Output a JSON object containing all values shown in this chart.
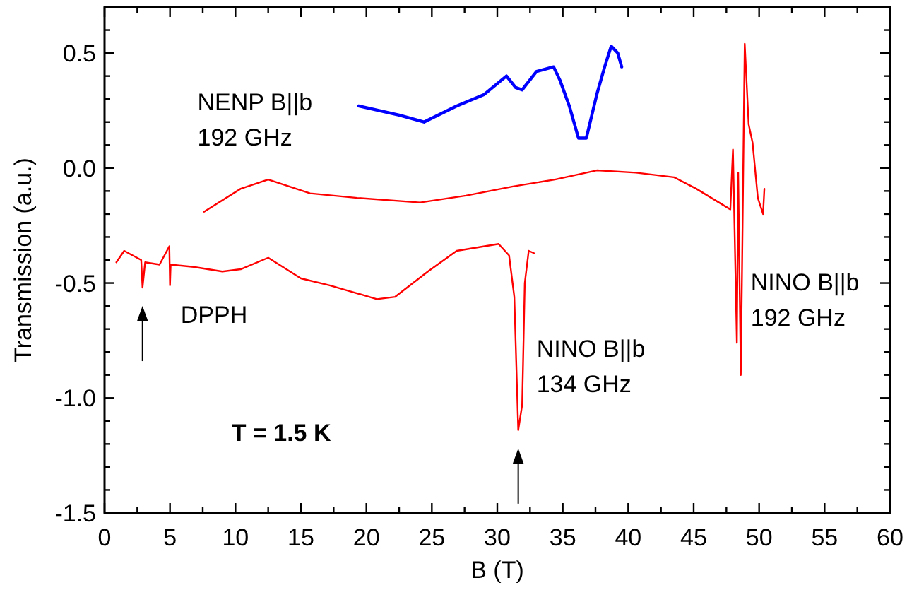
{
  "chart_data": {
    "type": "line",
    "xlabel": "B (T)",
    "ylabel": "Transmission (a.u.)",
    "xlim": [
      0,
      60
    ],
    "ylim": [
      -1.5,
      0.7
    ],
    "xticks": [
      0,
      {
        "value": 2.5,
        "label": null
      },
      5,
      {
        "value": 7.5,
        "label": null
      },
      10,
      {
        "value": 12.5,
        "label": null
      },
      15,
      {
        "value": 17.5,
        "label": null
      },
      20,
      {
        "value": 22.5,
        "label": null
      },
      25,
      {
        "value": 27.5,
        "label": null
      },
      30,
      {
        "value": 32.5,
        "label": null
      },
      35,
      {
        "value": 37.5,
        "label": null
      },
      40,
      {
        "value": 42.5,
        "label": null
      },
      45,
      {
        "value": 47.5,
        "label": null
      },
      50,
      {
        "value": 52.5,
        "label": null
      },
      55,
      {
        "value": 57.5,
        "label": null
      },
      60
    ],
    "yticks": [
      -1.5,
      {
        "value": -1.4,
        "label": null
      },
      {
        "value": -1.3,
        "label": null
      },
      {
        "value": -1.2,
        "label": null
      },
      {
        "value": -1.1,
        "label": null
      },
      {
        "value": -1.0,
        "label": "-1.0"
      },
      {
        "value": -0.9,
        "label": null
      },
      {
        "value": -0.8,
        "label": null
      },
      {
        "value": -0.7,
        "label": null
      },
      {
        "value": -0.6,
        "label": null
      },
      -0.5,
      {
        "value": -0.4,
        "label": null
      },
      {
        "value": -0.3,
        "label": null
      },
      {
        "value": -0.2,
        "label": null
      },
      {
        "value": -0.1,
        "label": null
      },
      {
        "value": 0,
        "label": "0.0"
      },
      {
        "value": 0.1,
        "label": null
      },
      {
        "value": 0.2,
        "label": null
      },
      {
        "value": 0.3,
        "label": null
      },
      {
        "value": 0.4,
        "label": null
      },
      0.5,
      {
        "value": 0.6,
        "label": null
      }
    ],
    "grid": false,
    "marker": "none",
    "line_style": "solid",
    "series": [
      {
        "color": "#0000ff",
        "x": [
          19.4,
          22.5,
          24.4,
          26.9,
          29.0,
          30.7,
          31.4,
          31.9,
          33.0,
          34.3,
          34.8,
          35.5,
          36.2,
          36.8,
          37.6,
          38.2,
          38.7,
          39.2,
          39.5
        ],
        "values": [
          0.27,
          0.23,
          0.2,
          0.27,
          0.32,
          0.4,
          0.35,
          0.34,
          0.42,
          0.44,
          0.38,
          0.27,
          0.13,
          0.13,
          0.32,
          0.44,
          0.53,
          0.5,
          0.44
        ]
      },
      {
        "color": "#ff0000",
        "x": [
          7.6,
          10.4,
          12.5,
          15.7,
          19.3,
          24.1,
          27.6,
          31.2,
          34.4,
          37.6,
          40.6,
          43.5,
          45.2,
          47.8,
          48.0,
          48.3,
          48.4,
          48.6,
          48.9,
          49.2,
          49.5,
          49.9,
          50.3,
          50.4
        ],
        "values": [
          -0.19,
          -0.09,
          -0.05,
          -0.11,
          -0.13,
          -0.15,
          -0.12,
          -0.08,
          -0.05,
          -0.01,
          -0.02,
          -0.04,
          -0.09,
          -0.18,
          0.08,
          -0.76,
          -0.02,
          -0.9,
          0.54,
          0.19,
          0.11,
          -0.13,
          -0.2,
          -0.09
        ]
      },
      {
        "color": "#ff0000",
        "x": [
          0.9,
          1.5,
          2.8,
          2.9,
          3.1,
          4.2,
          4.95,
          5.0,
          5.05,
          6.8,
          9.0,
          10.4,
          12.5,
          15.0,
          17.2,
          20.8,
          22.2,
          24.7,
          26.9,
          30.1,
          30.9,
          31.3,
          31.6,
          31.9,
          32.1,
          32.4,
          32.8
        ],
        "values": [
          -0.41,
          -0.36,
          -0.4,
          -0.52,
          -0.41,
          -0.42,
          -0.34,
          -0.51,
          -0.42,
          -0.43,
          -0.45,
          -0.44,
          -0.39,
          -0.48,
          -0.51,
          -0.57,
          -0.56,
          -0.45,
          -0.36,
          -0.33,
          -0.38,
          -0.56,
          -1.14,
          -1.03,
          -0.5,
          -0.36,
          -0.37
        ]
      }
    ],
    "annotations": [
      {
        "text": "NENP B||b\n192 GHz",
        "x": 19.4,
        "y": 0.27
      },
      {
        "text": "DPPH",
        "x": 2.9,
        "y": -0.52
      },
      {
        "text": "NINO B||b\n134 GHz",
        "x": 31.6,
        "y": -1.14
      },
      {
        "text": "NINO B||b\n192 GHz",
        "x": 48.6,
        "y": -0.9
      },
      "T = 1.5 K"
    ]
  }
}
